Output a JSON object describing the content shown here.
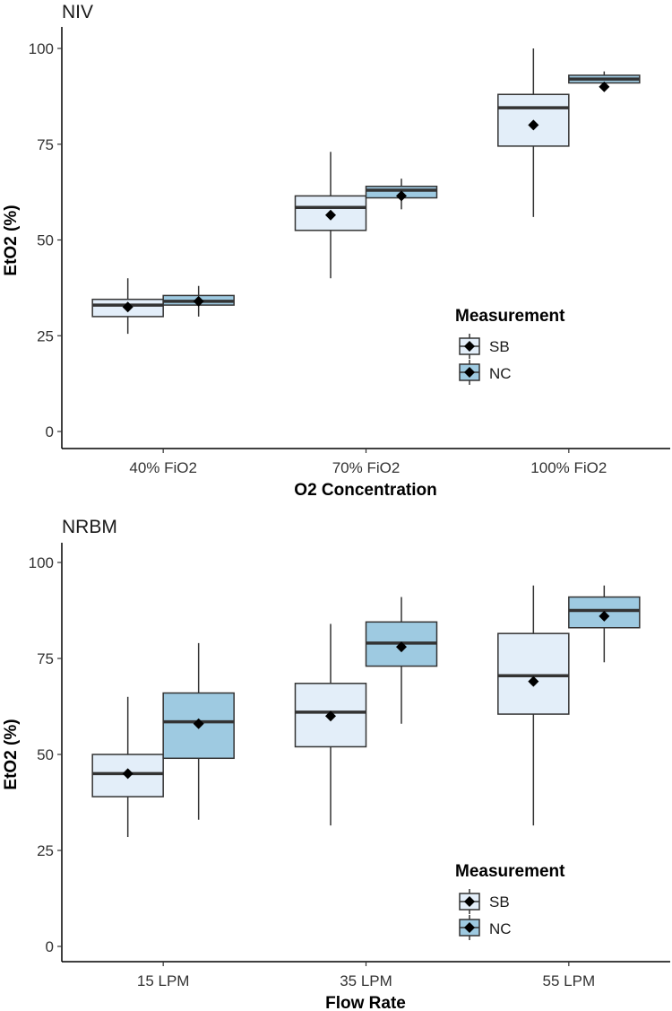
{
  "colors": {
    "SB": "#e3eef9",
    "NC": "#9ecae1",
    "mean_marker": "#000000"
  },
  "chart_data": [
    {
      "type": "boxplot",
      "title": "NIV",
      "xlabel": "O2 Concentration",
      "ylabel": "EtO2 (%)",
      "ylim": [
        0,
        105
      ],
      "yticks": [
        0,
        25,
        50,
        75,
        100
      ],
      "categories": [
        "40% FiO2",
        "70% FiO2",
        "100% FiO2"
      ],
      "legend": {
        "title": "Measurement",
        "entries": [
          "SB",
          "NC"
        ]
      },
      "series": [
        {
          "name": "SB",
          "boxes": [
            {
              "min": 25.5,
              "q1": 30,
              "median": 33,
              "q3": 34.5,
              "max": 40,
              "mean": 32.5
            },
            {
              "min": 40,
              "q1": 52.5,
              "median": 58.5,
              "q3": 61.5,
              "max": 73,
              "mean": 56.5
            },
            {
              "min": 56,
              "q1": 74.5,
              "median": 84.5,
              "q3": 88,
              "max": 100,
              "mean": 80
            }
          ]
        },
        {
          "name": "NC",
          "boxes": [
            {
              "min": 30,
              "q1": 33,
              "median": 34,
              "q3": 35.5,
              "max": 38,
              "mean": 34
            },
            {
              "min": 58,
              "q1": 61,
              "median": 63,
              "q3": 64,
              "max": 66,
              "mean": 61.5
            },
            {
              "min": 89,
              "q1": 91,
              "median": 92,
              "q3": 93,
              "max": 94,
              "mean": 90
            }
          ]
        }
      ]
    },
    {
      "type": "boxplot",
      "title": "NRBM",
      "xlabel": "Flow Rate",
      "ylabel": "EtO2 (%)",
      "ylim": [
        0,
        105
      ],
      "yticks": [
        0,
        25,
        50,
        75,
        100
      ],
      "categories": [
        "15 LPM",
        "35 LPM",
        "55 LPM"
      ],
      "legend": {
        "title": "Measurement",
        "entries": [
          "SB",
          "NC"
        ]
      },
      "series": [
        {
          "name": "SB",
          "boxes": [
            {
              "min": 28.5,
              "q1": 39,
              "median": 45,
              "q3": 50,
              "max": 65,
              "mean": 45
            },
            {
              "min": 31.5,
              "q1": 52,
              "median": 61,
              "q3": 68.5,
              "max": 84,
              "mean": 60
            },
            {
              "min": 31.5,
              "q1": 60.5,
              "median": 70.5,
              "q3": 81.5,
              "max": 94,
              "mean": 69
            }
          ]
        },
        {
          "name": "NC",
          "boxes": [
            {
              "min": 33,
              "q1": 49,
              "median": 58.5,
              "q3": 66,
              "max": 79,
              "mean": 58
            },
            {
              "min": 58,
              "q1": 73,
              "median": 79,
              "q3": 84.5,
              "max": 91,
              "mean": 78
            },
            {
              "min": 74,
              "q1": 83,
              "median": 87.5,
              "q3": 91,
              "max": 94,
              "mean": 86
            }
          ]
        }
      ]
    }
  ]
}
